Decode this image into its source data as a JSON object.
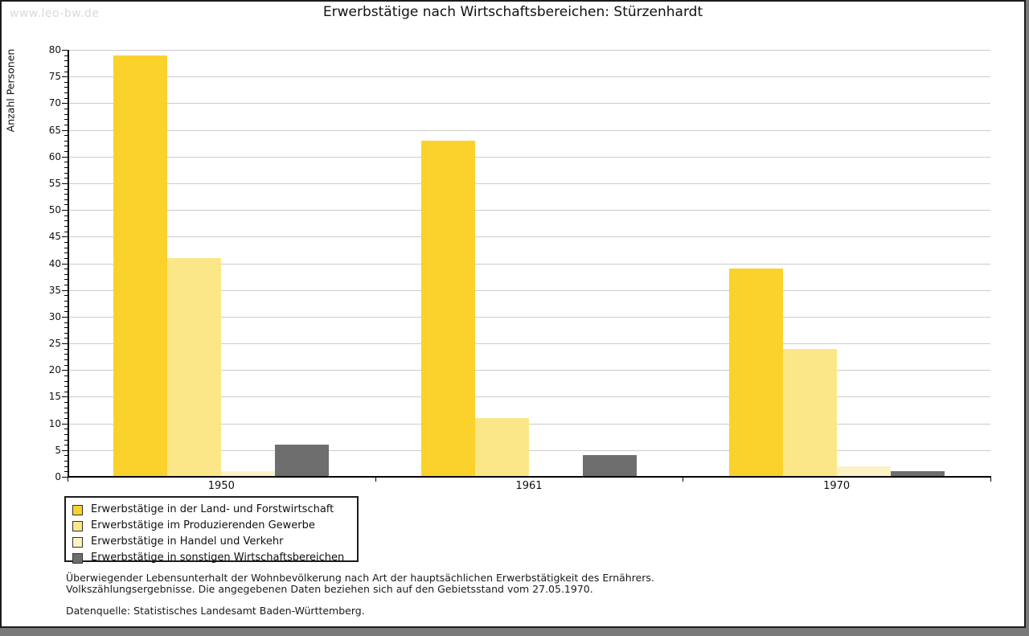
{
  "watermark": "www.leo-bw.de",
  "chart_data": {
    "type": "bar",
    "title": "Erwerbstätige nach Wirtschaftsbereichen: Stürzenhardt",
    "ylabel": "Anzahl Personen",
    "xlabel": "",
    "categories": [
      "1950",
      "1961",
      "1970"
    ],
    "series": [
      {
        "name": "Erwerbstätige in der Land- und Forstwirtschaft",
        "color": "#fbd22c",
        "values": [
          79,
          63,
          39
        ]
      },
      {
        "name": "Erwerbstätige im Produzierenden Gewerbe",
        "color": "#fce788",
        "values": [
          41,
          11,
          24
        ]
      },
      {
        "name": "Erwerbstätige in Handel und Verkehr",
        "color": "#fbf3c6",
        "values": [
          1,
          0,
          2
        ]
      },
      {
        "name": "Erwerbstätige in sonstigen Wirtschaftsbereichen",
        "color": "#6e6e6e",
        "values": [
          6,
          4,
          1
        ]
      }
    ],
    "ylim": [
      0,
      80
    ],
    "ytick_step": 5,
    "yminor_step": 1,
    "grid": true,
    "legend_position": "bottom-left",
    "legend_entries": [
      "Erwerbstätige in der Land- und Forstwirtschaft",
      "Erwerbstätige im Produzierenden Gewerbe",
      "Erwerbstätige in Handel und Verkehr",
      "Erwerbstätige in sonstigen Wirtschaftsbereichen"
    ]
  },
  "footnotes": {
    "line1": "Überwiegender Lebensunterhalt der Wohnbevölkerung nach Art der hauptsächlichen Erwerbstätigkeit des Ernährers.",
    "line2": "Volkszählungsergebnisse. Die angegebenen Daten beziehen sich auf den Gebietsstand vom 27.05.1970.",
    "source": "Datenquelle: Statistisches Landesamt Baden-Württemberg."
  }
}
